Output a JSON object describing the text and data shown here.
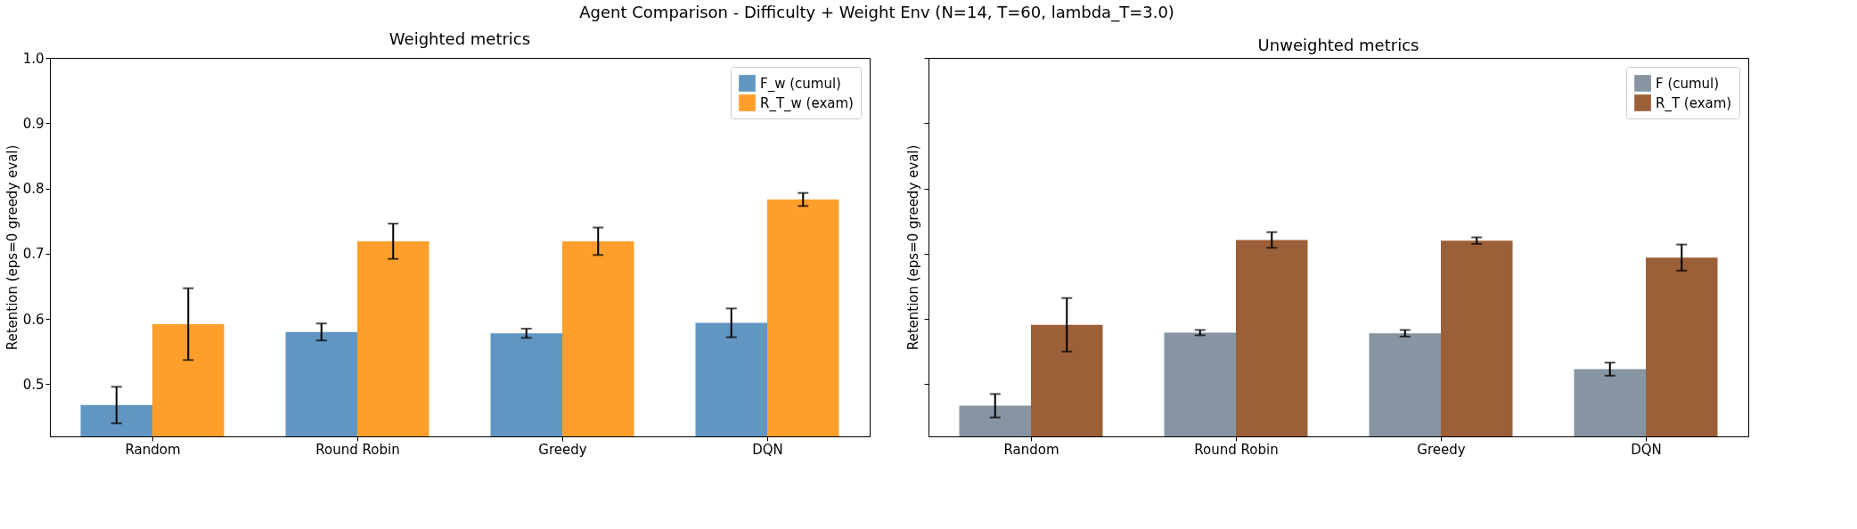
{
  "chart_data": [
    {
      "type": "bar",
      "title": "Weighted metrics",
      "ylabel": "Retention (eps=0 greedy eval)",
      "annotations": [
        "Agent Comparison - Difficulty + Weight Env (N=14, T=60, lambda_T=3.0)"
      ],
      "categories": [
        "Random",
        "Round Robin",
        "Greedy",
        "DQN"
      ],
      "series": [
        {
          "name": "F_w (cumul)",
          "color": "#6296c2",
          "values": [
            0.468,
            0.58,
            0.578,
            0.594
          ],
          "errors": [
            0.028,
            0.013,
            0.007,
            0.022
          ]
        },
        {
          "name": "R_T_w (exam)",
          "color": "#fe9f2b",
          "values": [
            0.592,
            0.719,
            0.719,
            0.783
          ],
          "errors": [
            0.055,
            0.027,
            0.021,
            0.01
          ]
        }
      ],
      "ylim": [
        0.42,
        1.0
      ],
      "yticks": [
        0.5,
        0.6,
        0.7,
        0.8,
        0.9,
        {
          "value": 1.0,
          "label": "1.0"
        }
      ],
      "legend": "top right",
      "grid": false
    },
    {
      "type": "bar",
      "title": "Unweighted metrics",
      "ylabel": "Retention (eps=0 greedy eval)",
      "categories": [
        "Random",
        "Round Robin",
        "Greedy",
        "DQN"
      ],
      "series": [
        {
          "name": "F (cumul)",
          "color": "#8794a1",
          "values": [
            0.467,
            0.579,
            0.578,
            0.523
          ],
          "errors": [
            0.018,
            0.004,
            0.005,
            0.01
          ]
        },
        {
          "name": "R_T (exam)",
          "color": "#9c6038",
          "values": [
            0.591,
            0.721,
            0.72,
            0.694
          ],
          "errors": [
            0.041,
            0.012,
            0.005,
            0.02
          ]
        }
      ],
      "ylim": [
        0.42,
        1.0
      ],
      "yticks": [
        0.5,
        0.6,
        0.7,
        0.8,
        0.9,
        1.0
      ],
      "tick_labels": "x",
      "legend": "top right",
      "grid": false
    }
  ]
}
